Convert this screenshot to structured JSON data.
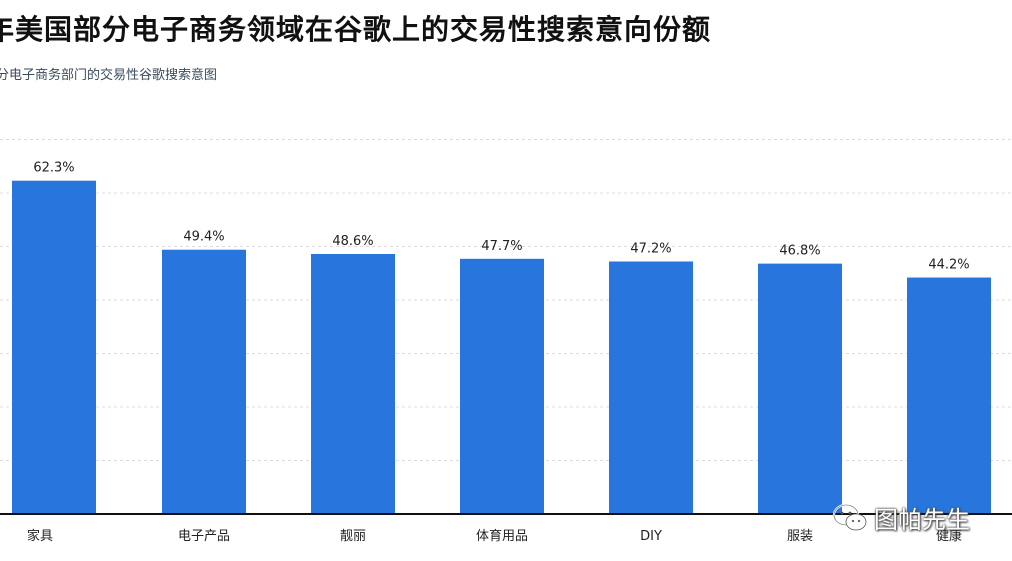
{
  "chart_data": {
    "type": "bar",
    "title": "年美国部分电子商务领域在谷歌上的交易性搜索意向份额",
    "subtitle": "分电子商务部门的交易性谷歌搜索意图",
    "categories": [
      "家具",
      "电子产品",
      "靓丽",
      "体育用品",
      "DIY",
      "服装",
      "健康"
    ],
    "values": [
      62.3,
      49.4,
      48.6,
      47.7,
      47.2,
      46.8,
      44.2
    ],
    "value_labels": [
      "62.3%",
      "49.4%",
      "48.6%",
      "47.7%",
      "47.2%",
      "46.8%",
      "44.2%"
    ],
    "ylim": [
      0,
      70
    ],
    "grid": true,
    "bar_color": "#2876dd",
    "xlabel": "",
    "ylabel": ""
  },
  "watermark": {
    "text": "图帕先生",
    "icon": "wechat-icon"
  }
}
